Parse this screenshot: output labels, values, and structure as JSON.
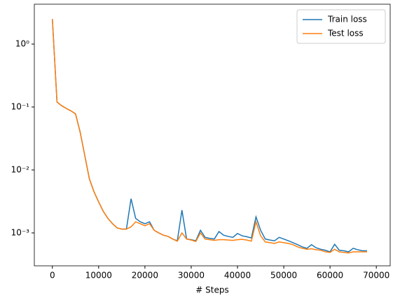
{
  "chart_data": {
    "type": "line",
    "x_label": "# Steps",
    "x": [
      0,
      1000,
      2000,
      3000,
      4000,
      5000,
      6000,
      7000,
      8000,
      9000,
      10000,
      11000,
      12000,
      13000,
      14000,
      15000,
      16000,
      17000,
      18000,
      19000,
      20000,
      21000,
      22000,
      23000,
      24000,
      25000,
      26000,
      27000,
      28000,
      29000,
      30000,
      31000,
      32000,
      33000,
      34000,
      35000,
      36000,
      37000,
      38000,
      39000,
      40000,
      41000,
      42000,
      43000,
      44000,
      45000,
      46000,
      47000,
      48000,
      49000,
      50000,
      51000,
      52000,
      53000,
      54000,
      55000,
      56000,
      57000,
      58000,
      59000,
      60000,
      61000,
      62000,
      63000,
      64000,
      65000,
      66000,
      67000,
      68000
    ],
    "series": [
      {
        "name": "Train loss",
        "color": "#1f77b4",
        "values": [
          2.5,
          0.12,
          0.105,
          0.095,
          0.087,
          0.078,
          0.04,
          0.017,
          0.0072,
          0.0045,
          0.0031,
          0.0022,
          0.0017,
          0.0014,
          0.0012,
          0.00115,
          0.00115,
          0.0035,
          0.0017,
          0.0015,
          0.0014,
          0.0015,
          0.0011,
          0.001,
          0.00092,
          0.00088,
          0.0008,
          0.00075,
          0.0023,
          0.0008,
          0.00078,
          0.00075,
          0.0011,
          0.00085,
          0.00082,
          0.0008,
          0.00105,
          0.00092,
          0.00088,
          0.00085,
          0.00098,
          0.0009,
          0.00087,
          0.00083,
          0.0018,
          0.0011,
          0.0008,
          0.00077,
          0.00075,
          0.00085,
          0.0008,
          0.00075,
          0.0007,
          0.00065,
          0.0006,
          0.00057,
          0.00065,
          0.00058,
          0.00055,
          0.00053,
          0.0005,
          0.00066,
          0.00053,
          0.00052,
          0.0005,
          0.00057,
          0.00054,
          0.00052,
          0.00052
        ]
      },
      {
        "name": "Test loss",
        "color": "#ff7f0e",
        "values": [
          2.5,
          0.12,
          0.105,
          0.095,
          0.087,
          0.078,
          0.04,
          0.017,
          0.0072,
          0.0045,
          0.0031,
          0.0022,
          0.0017,
          0.0014,
          0.0012,
          0.00115,
          0.00115,
          0.00125,
          0.0015,
          0.0014,
          0.0013,
          0.0014,
          0.0011,
          0.001,
          0.00092,
          0.00088,
          0.0008,
          0.00074,
          0.001,
          0.0008,
          0.00077,
          0.00073,
          0.001,
          0.0008,
          0.00078,
          0.00076,
          0.00078,
          0.00078,
          0.00077,
          0.00076,
          0.00078,
          0.00079,
          0.00077,
          0.00074,
          0.0015,
          0.0009,
          0.00072,
          0.0007,
          0.00068,
          0.00072,
          0.0007,
          0.00068,
          0.00065,
          0.0006,
          0.00057,
          0.00055,
          0.00056,
          0.00054,
          0.00053,
          0.0005,
          0.00049,
          0.00055,
          0.0005,
          0.00049,
          0.00048,
          0.0005,
          0.0005,
          0.0005,
          0.0005
        ]
      }
    ],
    "xlim": [
      -3900,
      73000
    ],
    "xticks": [
      0,
      10000,
      20000,
      30000,
      40000,
      50000,
      60000,
      70000
    ],
    "ylim": [
      0.0003,
      4.3
    ],
    "ylog": true,
    "yticks": [
      {
        "value": 1,
        "label": "10⁰"
      },
      {
        "value": 0.1,
        "label": "10⁻¹"
      },
      {
        "value": 0.01,
        "label": "10⁻²"
      },
      {
        "value": 0.001,
        "label": "10⁻³"
      }
    ],
    "legend": "upper right"
  }
}
